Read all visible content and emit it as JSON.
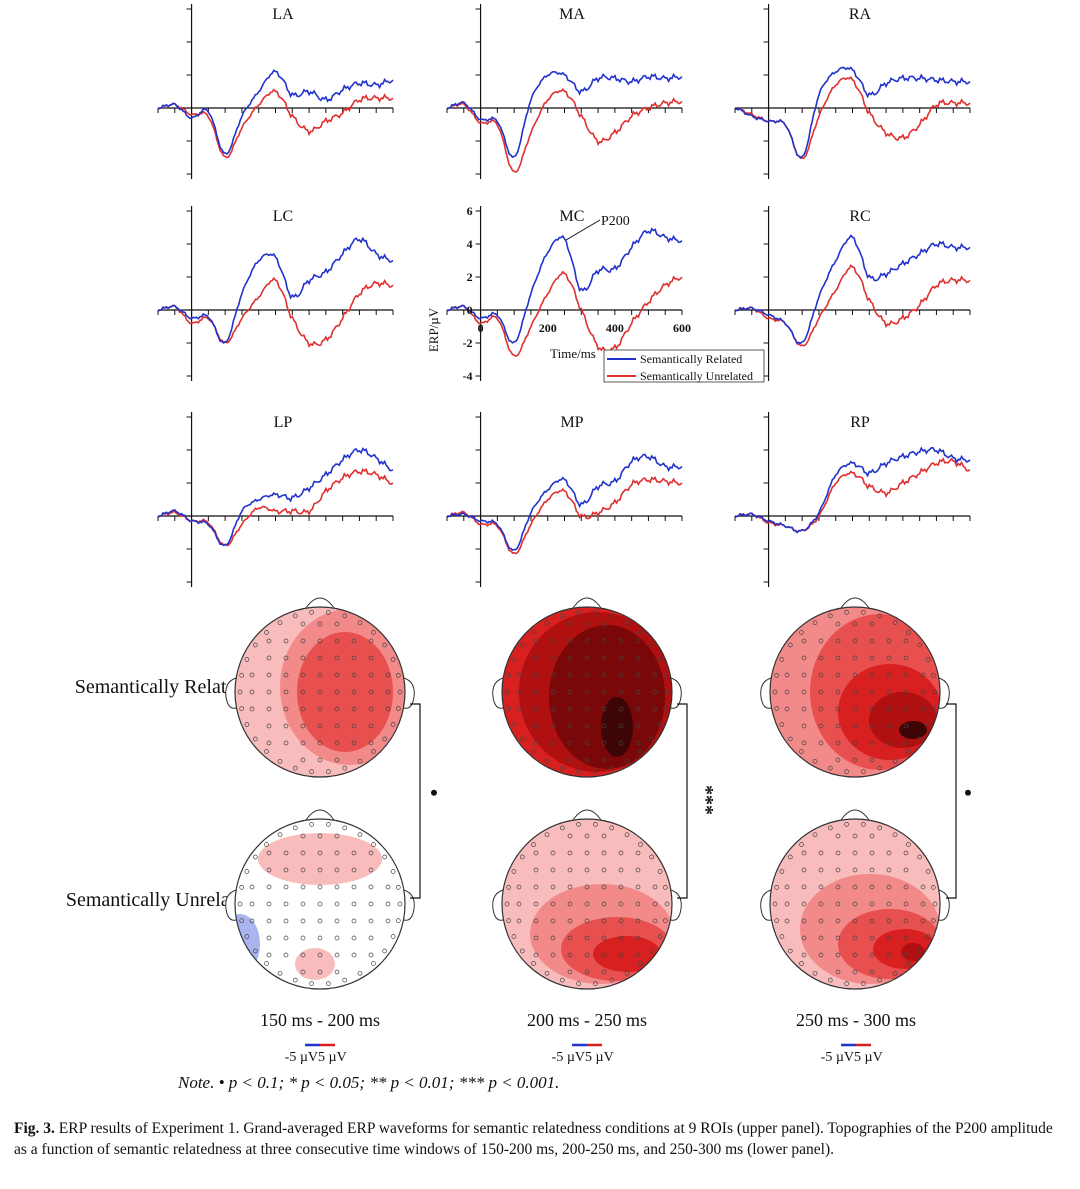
{
  "colors": {
    "related": "#2233cc",
    "unrelated": "#e03030"
  },
  "erp": {
    "panels": [
      "LA",
      "MA",
      "RA",
      "LC",
      "MC",
      "RC",
      "LP",
      "MP",
      "RP"
    ],
    "peak_label": "P200",
    "y_axis_label": "ERP/µV",
    "x_axis_label": "Time/ms",
    "y_ticks": [
      "6",
      "4",
      "2",
      "0",
      "-2",
      "-4"
    ],
    "x_ticks": [
      "0",
      "200",
      "400",
      "600"
    ],
    "legend": {
      "related": "Semantically Related",
      "unrelated": "Semantically Unrelated"
    }
  },
  "chart_data": {
    "type": "line",
    "title": "Grand-averaged ERP waveforms at 9 ROIs",
    "xlabel": "Time/ms",
    "ylabel": "ERP/µV",
    "xlim": [
      -100,
      600
    ],
    "ylim": [
      -4,
      6
    ],
    "x": [
      -100,
      -50,
      0,
      50,
      100,
      150,
      200,
      250,
      300,
      350,
      400,
      450,
      500,
      550,
      600
    ],
    "series": [
      {
        "name": "MC Semantically Related",
        "values": [
          0,
          0.2,
          -0.5,
          -0.3,
          -2.0,
          1.0,
          3.5,
          4.3,
          1.2,
          2.4,
          2.5,
          3.8,
          4.8,
          4.4,
          4.2
        ]
      },
      {
        "name": "MC Semantically Unrelated",
        "values": [
          0,
          0.2,
          -0.8,
          -0.5,
          -2.8,
          -1.0,
          1.0,
          2.2,
          0.0,
          -2.2,
          -2.3,
          -0.8,
          0.5,
          1.5,
          2.0
        ]
      }
    ]
  },
  "topo": {
    "rows": [
      "Semantically Related",
      "Semantically Unrelated"
    ],
    "windows": [
      "150 ms - 200 ms",
      "200 ms - 250 ms",
      "250 ms - 300 ms"
    ],
    "scale": [
      "-5 µV",
      "5 µV"
    ],
    "significance": [
      "•",
      "***",
      "•"
    ]
  },
  "note": "Note. • p < 0.1; * p < 0.05; ** p < 0.01; *** p < 0.001.",
  "caption": {
    "label": "Fig. 3.",
    "text": "ERP results of Experiment 1. Grand-averaged ERP waveforms for semantic relatedness conditions at 9 ROIs (upper panel). Topographies of the P200 amplitude as a function of semantic relatedness at three consecutive time windows of 150-200 ms, 200-250 ms, and 250-300 ms (lower panel)."
  }
}
